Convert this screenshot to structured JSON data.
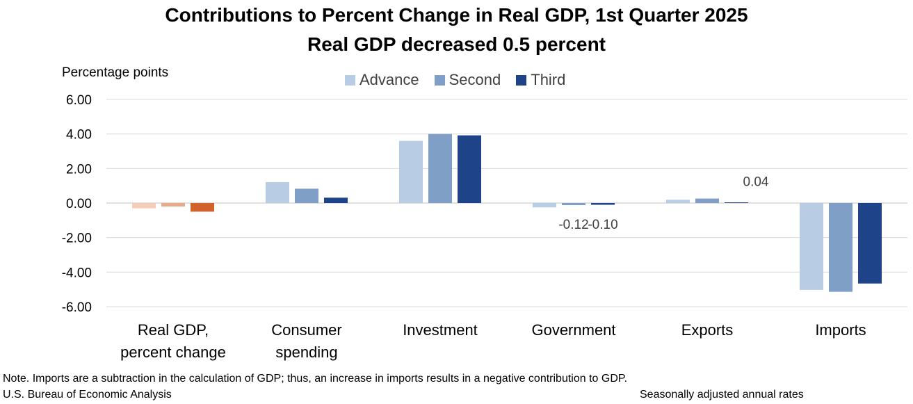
{
  "chart_data": {
    "type": "bar",
    "title": "Contributions to Percent Change in Real GDP, 1st Quarter 2025",
    "subtitle": "Real GDP decreased 0.5 percent",
    "ylabel": "Percentage points",
    "ylim": [
      -6,
      6
    ],
    "yticks": [
      "6.00",
      "4.00",
      "2.00",
      "0.00",
      "-2.00",
      "-4.00",
      "-6.00"
    ],
    "ytick_values": [
      6,
      4,
      2,
      0,
      -2,
      -4,
      -6
    ],
    "grid": true,
    "legend_position": "top-center",
    "categories": [
      [
        "Real GDP,",
        "percent change"
      ],
      [
        "Consumer",
        "spending"
      ],
      [
        "Investment"
      ],
      [
        "Government"
      ],
      [
        "Exports"
      ],
      [
        "Imports"
      ]
    ],
    "series": [
      {
        "name": "Advance",
        "color": "#b8cce4",
        "values": [
          -0.3,
          1.21,
          3.6,
          -0.25,
          0.19,
          -5.03
        ]
      },
      {
        "name": "Second",
        "color": "#7f9fc6",
        "values": [
          -0.2,
          0.83,
          4.0,
          -0.12,
          0.26,
          -5.14
        ]
      },
      {
        "name": "Third",
        "color": "#1f4388",
        "values": [
          -0.5,
          0.31,
          3.92,
          -0.1,
          0.04,
          -4.66
        ]
      }
    ],
    "highlight": {
      "category_index": 0,
      "series_index": 2,
      "color": "#d0622a"
    },
    "highlight_lighter": {
      "category_index": 0,
      "advance_color": "#f4cdb8",
      "second_color": "#e8ab8a"
    },
    "data_labels": [
      {
        "text": "-0.12",
        "category_index": 3,
        "series_index": 1
      },
      {
        "text": "-0.10",
        "category_index": 3,
        "series_index": 2
      },
      {
        "text": "0.04",
        "category_index": 4,
        "series_index": 2
      }
    ]
  },
  "footer": {
    "note": "Note. Imports are a subtraction in the calculation of GDP; thus, an increase in imports results in a negative contribution to GDP.",
    "source": "U.S. Bureau of Economic Analysis",
    "rates": "Seasonally adjusted annual rates"
  }
}
